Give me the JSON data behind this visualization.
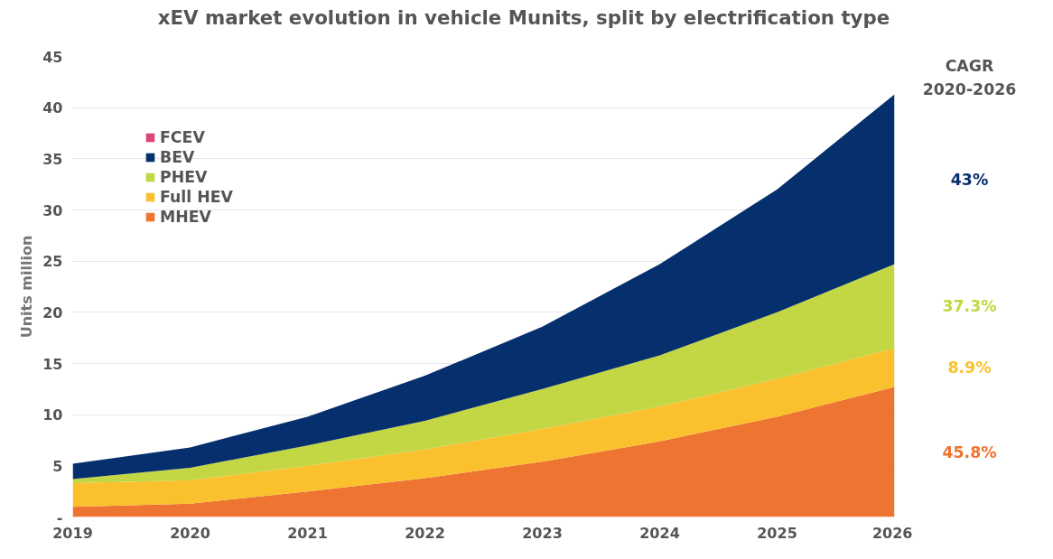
{
  "chart_data": {
    "type": "area",
    "stacked": true,
    "title": "xEV market evolution in vehicle Munits, split by electrification type",
    "ylabel": "Units million",
    "x": [
      2019,
      2020,
      2021,
      2022,
      2023,
      2024,
      2025,
      2026
    ],
    "xlim": [
      2019,
      2026
    ],
    "xticks": [
      2019,
      2020,
      2021,
      2022,
      2023,
      2024,
      2025,
      2026
    ],
    "ylim": [
      0,
      45
    ],
    "yticks": [
      {
        "value": 0,
        "label": "-"
      },
      5,
      10,
      15,
      20,
      25,
      30,
      35,
      40,
      45
    ],
    "grid": "y",
    "legend": "top left",
    "series": [
      {
        "name": "MHEV",
        "color": "#ed7431",
        "values": [
          1.0,
          1.3,
          2.5,
          3.8,
          5.4,
          7.4,
          9.8,
          12.7
        ]
      },
      {
        "name": "Full HEV",
        "color": "#fbc02d",
        "values": [
          2.3,
          2.3,
          2.5,
          2.8,
          3.2,
          3.4,
          3.7,
          3.8
        ]
      },
      {
        "name": "PHEV",
        "color": "#c3d643",
        "values": [
          0.4,
          1.2,
          2.0,
          2.8,
          3.9,
          5.0,
          6.5,
          8.2
        ]
      },
      {
        "name": "BEV",
        "color": "#062f6e",
        "values": [
          1.5,
          2.0,
          2.8,
          4.4,
          6.1,
          8.9,
          12.0,
          16.6
        ]
      },
      {
        "name": "FCEV",
        "color": "#d9467a",
        "values": [
          null,
          null,
          null,
          null,
          null,
          null,
          null,
          null
        ]
      }
    ],
    "annotations": [
      "CAGR\n2020-2026",
      "43%",
      "37.3%",
      "8.9%",
      "45.8%"
    ]
  }
}
